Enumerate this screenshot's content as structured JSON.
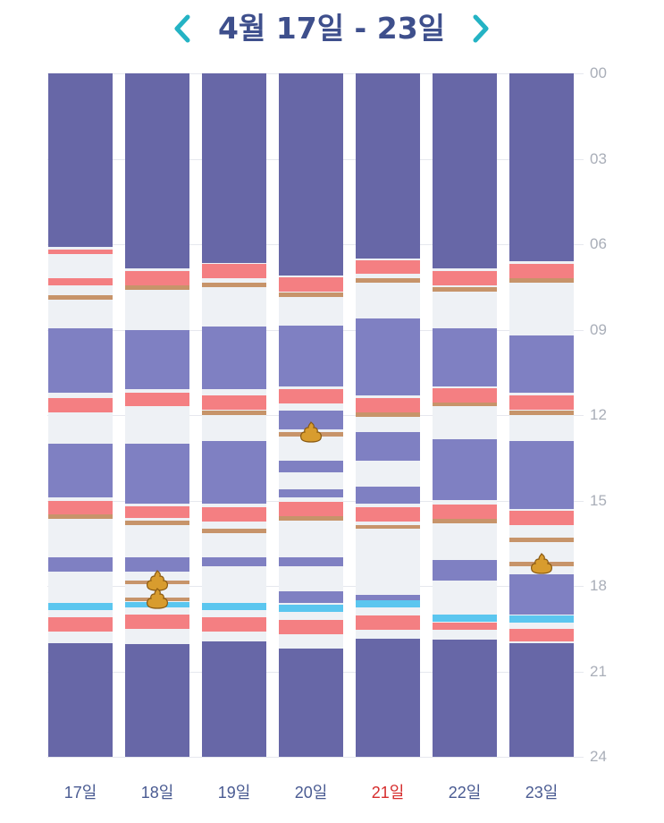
{
  "header": {
    "title": "4월 17일 - 23일",
    "prev_icon": "chevron-left-icon",
    "next_icon": "chevron-right-icon",
    "accent_color": "#24b3c4",
    "title_color": "#3e4f8c"
  },
  "colors": {
    "night_sleep": "#6767a7",
    "nap": "#7f80c2",
    "awake": "#eef1f5",
    "feeding": "#f47f82",
    "diaper": "#c7946a",
    "bath": "#5bc6ef",
    "poop": "#d89c2e"
  },
  "chart_data": {
    "type": "timeline",
    "hour_range": [
      0,
      24
    ],
    "y_ticks": [
      "00",
      "03",
      "06",
      "09",
      "12",
      "15",
      "18",
      "21",
      "24"
    ],
    "days": [
      {
        "label": "17일",
        "today": false,
        "segments": [
          {
            "type": "night_sleep",
            "start": 0.0,
            "end": 6.1
          },
          {
            "type": "feeding",
            "start": 6.2,
            "end": 6.35
          },
          {
            "type": "feeding",
            "start": 7.2,
            "end": 7.45
          },
          {
            "type": "diaper",
            "start": 7.8,
            "end": 7.95
          },
          {
            "type": "nap",
            "start": 8.95,
            "end": 11.2
          },
          {
            "type": "feeding",
            "start": 11.4,
            "end": 11.9
          },
          {
            "type": "nap",
            "start": 13.0,
            "end": 14.9
          },
          {
            "type": "feeding",
            "start": 15.0,
            "end": 15.5
          },
          {
            "type": "diaper",
            "start": 15.5,
            "end": 15.65
          },
          {
            "type": "nap",
            "start": 17.0,
            "end": 17.5
          },
          {
            "type": "bath",
            "start": 18.6,
            "end": 18.85
          },
          {
            "type": "feeding",
            "start": 19.1,
            "end": 19.6
          },
          {
            "type": "night_sleep",
            "start": 20.0,
            "end": 24.0
          }
        ],
        "poops": []
      },
      {
        "label": "18일",
        "today": false,
        "segments": [
          {
            "type": "night_sleep",
            "start": 0.0,
            "end": 6.85
          },
          {
            "type": "feeding",
            "start": 6.95,
            "end": 7.45
          },
          {
            "type": "diaper",
            "start": 7.45,
            "end": 7.6
          },
          {
            "type": "nap",
            "start": 9.0,
            "end": 11.1
          },
          {
            "type": "feeding",
            "start": 11.2,
            "end": 11.7
          },
          {
            "type": "nap",
            "start": 13.0,
            "end": 15.1
          },
          {
            "type": "feeding",
            "start": 15.2,
            "end": 15.6
          },
          {
            "type": "diaper",
            "start": 15.7,
            "end": 15.85
          },
          {
            "type": "nap",
            "start": 17.0,
            "end": 17.5
          },
          {
            "type": "diaper",
            "start": 17.8,
            "end": 17.95
          },
          {
            "type": "diaper",
            "start": 18.4,
            "end": 18.55
          },
          {
            "type": "bath",
            "start": 18.55,
            "end": 18.75
          },
          {
            "type": "feeding",
            "start": 19.0,
            "end": 19.5
          },
          {
            "type": "night_sleep",
            "start": 20.05,
            "end": 24.0
          }
        ],
        "poops": [
          17.8,
          18.45
        ]
      },
      {
        "label": "19일",
        "today": false,
        "segments": [
          {
            "type": "night_sleep",
            "start": 0.0,
            "end": 6.65
          },
          {
            "type": "feeding",
            "start": 6.7,
            "end": 7.2
          },
          {
            "type": "diaper",
            "start": 7.35,
            "end": 7.5
          },
          {
            "type": "nap",
            "start": 8.9,
            "end": 11.1
          },
          {
            "type": "feeding",
            "start": 11.3,
            "end": 11.8
          },
          {
            "type": "diaper",
            "start": 11.85,
            "end": 12.0
          },
          {
            "type": "nap",
            "start": 12.9,
            "end": 15.1
          },
          {
            "type": "feeding",
            "start": 15.25,
            "end": 15.75
          },
          {
            "type": "diaper",
            "start": 16.0,
            "end": 16.15
          },
          {
            "type": "nap",
            "start": 17.0,
            "end": 17.3
          },
          {
            "type": "bath",
            "start": 18.6,
            "end": 18.85
          },
          {
            "type": "feeding",
            "start": 19.1,
            "end": 19.6
          },
          {
            "type": "night_sleep",
            "start": 19.95,
            "end": 24.0
          }
        ],
        "poops": []
      },
      {
        "label": "20일",
        "today": false,
        "segments": [
          {
            "type": "night_sleep",
            "start": 0.0,
            "end": 7.1
          },
          {
            "type": "feeding",
            "start": 7.15,
            "end": 7.65
          },
          {
            "type": "diaper",
            "start": 7.7,
            "end": 7.85
          },
          {
            "type": "nap",
            "start": 8.85,
            "end": 11.0
          },
          {
            "type": "feeding",
            "start": 11.1,
            "end": 11.6
          },
          {
            "type": "nap",
            "start": 11.85,
            "end": 12.5
          },
          {
            "type": "diaper",
            "start": 12.6,
            "end": 12.75
          },
          {
            "type": "nap",
            "start": 13.6,
            "end": 14.0
          },
          {
            "type": "nap",
            "start": 14.6,
            "end": 14.9
          },
          {
            "type": "feeding",
            "start": 15.05,
            "end": 15.55
          },
          {
            "type": "diaper",
            "start": 15.55,
            "end": 15.7
          },
          {
            "type": "nap",
            "start": 17.0,
            "end": 17.3
          },
          {
            "type": "nap",
            "start": 18.2,
            "end": 18.6
          },
          {
            "type": "bath",
            "start": 18.65,
            "end": 18.9
          },
          {
            "type": "feeding",
            "start": 19.2,
            "end": 19.7
          },
          {
            "type": "night_sleep",
            "start": 20.2,
            "end": 24.0
          }
        ],
        "poops": [
          12.6
        ]
      },
      {
        "label": "21일",
        "today": true,
        "segments": [
          {
            "type": "night_sleep",
            "start": 0.0,
            "end": 6.5
          },
          {
            "type": "feeding",
            "start": 6.55,
            "end": 7.05
          },
          {
            "type": "diaper",
            "start": 7.2,
            "end": 7.35
          },
          {
            "type": "nap",
            "start": 8.6,
            "end": 11.3
          },
          {
            "type": "feeding",
            "start": 11.4,
            "end": 11.9
          },
          {
            "type": "diaper",
            "start": 11.9,
            "end": 12.05
          },
          {
            "type": "nap",
            "start": 12.6,
            "end": 13.6
          },
          {
            "type": "nap",
            "start": 14.5,
            "end": 15.1
          },
          {
            "type": "feeding",
            "start": 15.25,
            "end": 15.75
          },
          {
            "type": "diaper",
            "start": 15.85,
            "end": 16.0
          },
          {
            "type": "nap",
            "start": 18.3,
            "end": 18.5
          },
          {
            "type": "bath",
            "start": 18.5,
            "end": 18.75
          },
          {
            "type": "feeding",
            "start": 19.05,
            "end": 19.55
          },
          {
            "type": "night_sleep",
            "start": 19.85,
            "end": 24.0
          }
        ],
        "poops": []
      },
      {
        "label": "22일",
        "today": false,
        "segments": [
          {
            "type": "night_sleep",
            "start": 0.0,
            "end": 6.85
          },
          {
            "type": "feeding",
            "start": 6.95,
            "end": 7.45
          },
          {
            "type": "diaper",
            "start": 7.5,
            "end": 7.65
          },
          {
            "type": "nap",
            "start": 8.95,
            "end": 11.0
          },
          {
            "type": "feeding",
            "start": 11.05,
            "end": 11.55
          },
          {
            "type": "diaper",
            "start": 11.55,
            "end": 11.7
          },
          {
            "type": "nap",
            "start": 12.85,
            "end": 15.0
          },
          {
            "type": "feeding",
            "start": 15.15,
            "end": 15.65
          },
          {
            "type": "diaper",
            "start": 15.65,
            "end": 15.8
          },
          {
            "type": "nap",
            "start": 17.1,
            "end": 17.8
          },
          {
            "type": "bath",
            "start": 19.0,
            "end": 19.25
          },
          {
            "type": "feeding",
            "start": 19.3,
            "end": 19.55
          },
          {
            "type": "night_sleep",
            "start": 19.9,
            "end": 24.0
          }
        ],
        "poops": []
      },
      {
        "label": "23일",
        "today": false,
        "segments": [
          {
            "type": "night_sleep",
            "start": 0.0,
            "end": 6.6
          },
          {
            "type": "feeding",
            "start": 6.7,
            "end": 7.2
          },
          {
            "type": "diaper",
            "start": 7.2,
            "end": 7.35
          },
          {
            "type": "nap",
            "start": 9.2,
            "end": 11.2
          },
          {
            "type": "feeding",
            "start": 11.3,
            "end": 11.8
          },
          {
            "type": "diaper",
            "start": 11.85,
            "end": 12.0
          },
          {
            "type": "nap",
            "start": 12.9,
            "end": 15.3
          },
          {
            "type": "feeding",
            "start": 15.35,
            "end": 15.85
          },
          {
            "type": "diaper",
            "start": 16.3,
            "end": 16.45
          },
          {
            "type": "diaper",
            "start": 17.15,
            "end": 17.3
          },
          {
            "type": "nap",
            "start": 17.6,
            "end": 19.0
          },
          {
            "type": "bath",
            "start": 19.05,
            "end": 19.3
          },
          {
            "type": "feeding",
            "start": 19.5,
            "end": 19.95
          },
          {
            "type": "night_sleep",
            "start": 20.0,
            "end": 24.0
          }
        ],
        "poops": [
          17.2
        ]
      }
    ]
  }
}
